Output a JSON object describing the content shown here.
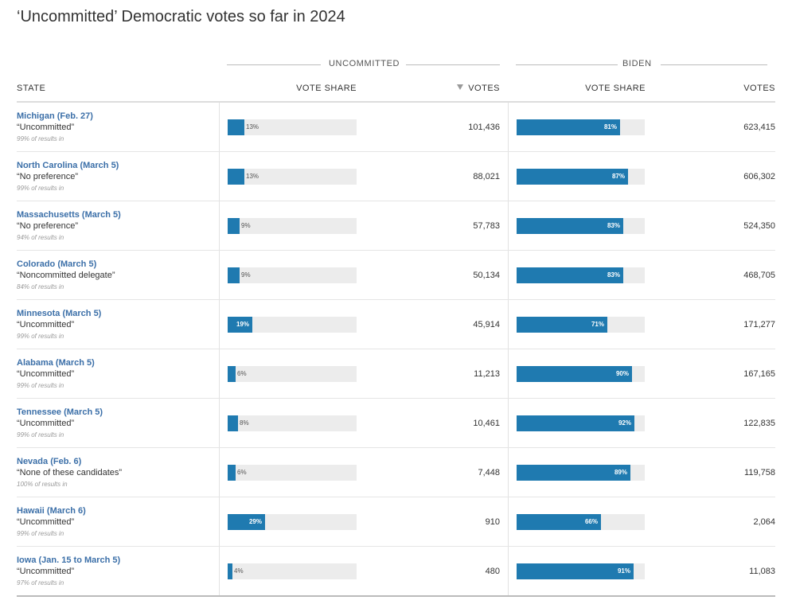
{
  "title": "‘Uncommitted’ Democratic votes so far in 2024",
  "groups": {
    "uncommitted": "UNCOMMITTED",
    "biden": "BIDEN"
  },
  "columns": {
    "state": "STATE",
    "u_share": "VOTE SHARE",
    "u_votes": "VOTES",
    "b_share": "VOTE SHARE",
    "b_votes": "VOTES"
  },
  "colors": {
    "bar": "#1f7ab0",
    "track": "#ececec",
    "state_link": "#3b6fa8"
  },
  "rows": [
    {
      "state": "Michigan (Feb. 27)",
      "label": "“Uncommitted”",
      "results": "99% of results in",
      "u_pct": 13,
      "u_share": "13%",
      "u_votes": "101,436",
      "b_pct": 81,
      "b_share": "81%",
      "b_votes": "623,415"
    },
    {
      "state": "North Carolina (March 5)",
      "label": "“No preference”",
      "results": "99% of results in",
      "u_pct": 13,
      "u_share": "13%",
      "u_votes": "88,021",
      "b_pct": 87,
      "b_share": "87%",
      "b_votes": "606,302"
    },
    {
      "state": "Massachusetts (March 5)",
      "label": "“No preference”",
      "results": "94% of results in",
      "u_pct": 9,
      "u_share": "9%",
      "u_votes": "57,783",
      "b_pct": 83,
      "b_share": "83%",
      "b_votes": "524,350"
    },
    {
      "state": "Colorado (March 5)",
      "label": "“Noncommitted delegate”",
      "results": "84% of results in",
      "u_pct": 9,
      "u_share": "9%",
      "u_votes": "50,134",
      "b_pct": 83,
      "b_share": "83%",
      "b_votes": "468,705"
    },
    {
      "state": "Minnesota (March 5)",
      "label": "“Uncommitted”",
      "results": "99% of results in",
      "u_pct": 19,
      "u_share": "19%",
      "u_votes": "45,914",
      "b_pct": 71,
      "b_share": "71%",
      "b_votes": "171,277"
    },
    {
      "state": "Alabama (March 5)",
      "label": "“Uncommitted”",
      "results": "99% of results in",
      "u_pct": 6,
      "u_share": "6%",
      "u_votes": "11,213",
      "b_pct": 90,
      "b_share": "90%",
      "b_votes": "167,165"
    },
    {
      "state": "Tennessee (March 5)",
      "label": "“Uncommitted”",
      "results": "99% of results in",
      "u_pct": 8,
      "u_share": "8%",
      "u_votes": "10,461",
      "b_pct": 92,
      "b_share": "92%",
      "b_votes": "122,835"
    },
    {
      "state": "Nevada (Feb. 6)",
      "label": "“None of these candidates”",
      "results": "100% of results in",
      "u_pct": 6,
      "u_share": "6%",
      "u_votes": "7,448",
      "b_pct": 89,
      "b_share": "89%",
      "b_votes": "119,758"
    },
    {
      "state": "Hawaii (March 6)",
      "label": "“Uncommitted”",
      "results": "99% of results in",
      "u_pct": 29,
      "u_share": "29%",
      "u_votes": "910",
      "b_pct": 66,
      "b_share": "66%",
      "b_votes": "2,064"
    },
    {
      "state": "Iowa (Jan. 15 to March 5)",
      "label": "“Uncommitted”",
      "results": "97% of results in",
      "u_pct": 4,
      "u_share": "4%",
      "u_votes": "480",
      "b_pct": 91,
      "b_share": "91%",
      "b_votes": "11,083"
    }
  ]
}
